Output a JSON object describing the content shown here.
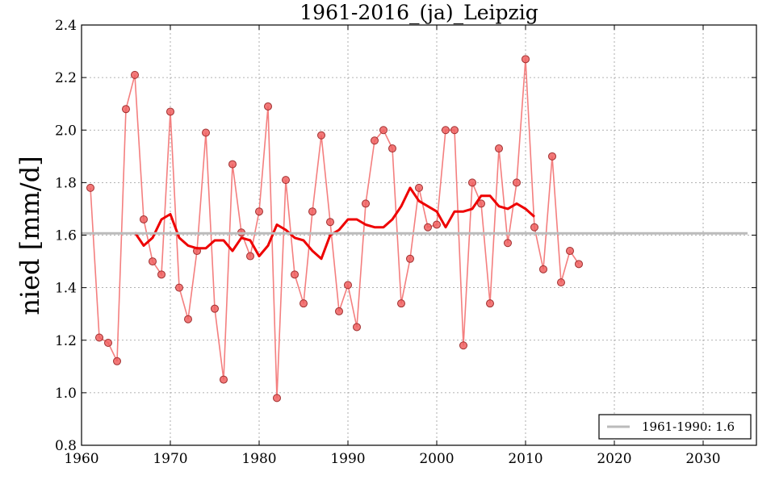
{
  "chart_data": {
    "type": "line",
    "title": "1961-2016_(ja)_Leipzig",
    "xlabel": "",
    "ylabel": "nied [mm/d]",
    "xlim": [
      1960,
      2036
    ],
    "ylim": [
      0.8,
      2.4
    ],
    "xticks": [
      1960,
      1970,
      1980,
      1990,
      2000,
      2010,
      2020,
      2030
    ],
    "yticks": [
      0.8,
      1.0,
      1.2,
      1.4,
      1.6,
      1.8,
      2.0,
      2.2,
      2.4
    ],
    "ytick_labels": [
      "0.8",
      "1.0",
      "1.2",
      "1.4",
      "1.6",
      "1.8",
      "2.0",
      "2.2",
      "2.4"
    ],
    "grid": true,
    "legend_position": "bottom-right",
    "series": [
      {
        "style": "line-markers",
        "color": "#f47f7f",
        "marker_color": "#f06060",
        "x": [
          1961,
          1962,
          1963,
          1964,
          1965,
          1966,
          1967,
          1968,
          1969,
          1970,
          1971,
          1972,
          1973,
          1974,
          1975,
          1976,
          1977,
          1978,
          1979,
          1980,
          1981,
          1982,
          1983,
          1984,
          1985,
          1986,
          1987,
          1988,
          1989,
          1990,
          1991,
          1992,
          1993,
          1994,
          1995,
          1996,
          1997,
          1998,
          1999,
          2000,
          2001,
          2002,
          2003,
          2004,
          2005,
          2006,
          2007,
          2008,
          2009,
          2010,
          2011,
          2012,
          2013,
          2014,
          2015,
          2016
        ],
        "y": [
          1.78,
          1.21,
          1.19,
          1.12,
          2.08,
          2.21,
          1.66,
          1.5,
          1.45,
          2.07,
          1.4,
          1.28,
          1.54,
          1.99,
          1.32,
          1.05,
          1.87,
          1.61,
          1.52,
          1.69,
          2.09,
          0.98,
          1.81,
          1.45,
          1.34,
          1.69,
          1.98,
          1.65,
          1.31,
          1.41,
          1.25,
          1.72,
          1.96,
          2.0,
          1.93,
          1.34,
          1.51,
          1.78,
          1.63,
          1.64,
          2.0,
          2.0,
          1.18,
          1.8,
          1.72,
          1.34,
          1.93,
          1.57,
          1.8,
          2.27,
          1.63,
          1.47,
          1.9,
          1.42,
          1.54,
          1.49
        ]
      },
      {
        "style": "line",
        "color": "#ee0000",
        "x": [
          1966,
          1967,
          1968,
          1969,
          1970,
          1971,
          1972,
          1973,
          1974,
          1975,
          1976,
          1977,
          1978,
          1979,
          1980,
          1981,
          1982,
          1983,
          1984,
          1985,
          1986,
          1987,
          1988,
          1989,
          1990,
          1991,
          1992,
          1993,
          1994,
          1995,
          1996,
          1997,
          1998,
          1999,
          2000,
          2001,
          2002,
          2003,
          2004,
          2005,
          2006,
          2007,
          2008,
          2009,
          2010,
          2011
        ],
        "y": [
          1.61,
          1.56,
          1.59,
          1.66,
          1.68,
          1.59,
          1.56,
          1.55,
          1.55,
          1.58,
          1.58,
          1.54,
          1.59,
          1.58,
          1.52,
          1.56,
          1.64,
          1.62,
          1.59,
          1.58,
          1.54,
          1.51,
          1.6,
          1.62,
          1.66,
          1.66,
          1.64,
          1.63,
          1.63,
          1.66,
          1.71,
          1.78,
          1.73,
          1.71,
          1.69,
          1.63,
          1.69,
          1.69,
          1.7,
          1.75,
          1.75,
          1.71,
          1.7,
          1.72,
          1.7,
          1.67
        ]
      },
      {
        "name": "1961-1990: 1.6",
        "style": "hline",
        "color": "#bbbbbb",
        "y": 1.607,
        "x_range": [
          1960,
          2035
        ]
      }
    ]
  }
}
